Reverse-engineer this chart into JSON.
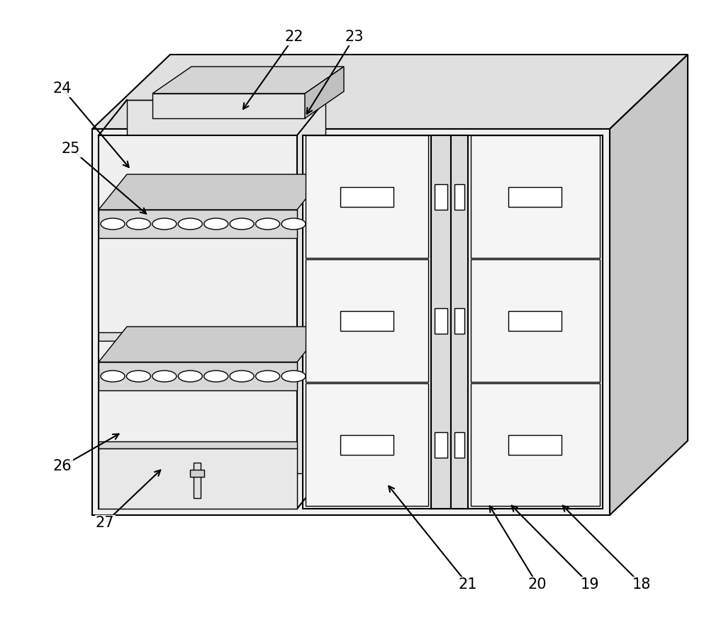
{
  "bg_color": "#ffffff",
  "lc": "#000000",
  "fc_top": "#e8e8e8",
  "fc_right": "#d0d0d0",
  "fc_front": "#f0f0f0",
  "fc_inner": "#e8e8e8",
  "fc_shelf": "#d8d8d8",
  "fc_drawer": "#f5f5f5",
  "fc_strip": "#dcdcdc",
  "lw_main": 1.5,
  "lw_thin": 1.0
}
